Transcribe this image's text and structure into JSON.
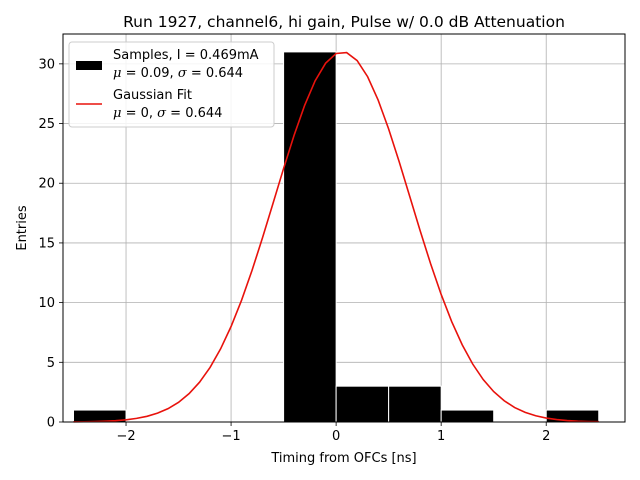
{
  "chart_data": {
    "type": "bar",
    "title": "Run 1927, channel6, hi gain, Pulse w/ 0.0 dB Attenuation",
    "xlabel": "Timing from OFCs [ns]",
    "ylabel": "Entries",
    "xlim": [
      -2.6,
      2.75
    ],
    "ylim": [
      0,
      32.5
    ],
    "grid": true,
    "x_ticks": [
      -2,
      -1,
      0,
      1,
      2
    ],
    "x_tick_labels": [
      "−2",
      "−1",
      "0",
      "1",
      "2"
    ],
    "y_ticks": [
      0,
      5,
      10,
      15,
      20,
      25,
      30
    ],
    "y_tick_labels": [
      "0",
      "5",
      "10",
      "15",
      "20",
      "25",
      "30"
    ],
    "histogram": {
      "name": "Samples",
      "color": "#000000",
      "edge_color": "#ffffff",
      "bin_edges": [
        -2.5,
        -2.0,
        -1.5,
        -1.0,
        -0.5,
        0.0,
        0.5,
        1.0,
        1.5,
        2.0,
        2.5
      ],
      "counts": [
        1,
        0,
        0,
        0,
        31,
        3,
        3,
        1,
        0,
        1
      ]
    },
    "fit": {
      "name": "Gaussian Fit",
      "color": "#e8120c",
      "mu": 0.06,
      "sigma": 0.644,
      "amplitude": 31,
      "x_range": [
        -2.5,
        2.5
      ]
    },
    "legend": {
      "position": "top-left",
      "entries": [
        {
          "line1": "Samples, I = 0.469mA",
          "mu_text": "μ",
          "mu_value": " = 0.09, ",
          "sigma_text": "σ",
          "sigma_value": " = 0.644"
        },
        {
          "line1": "Gaussian Fit",
          "mu_text": "μ",
          "mu_value": " = 0, ",
          "sigma_text": "σ",
          "sigma_value": " = 0.644"
        }
      ]
    }
  }
}
